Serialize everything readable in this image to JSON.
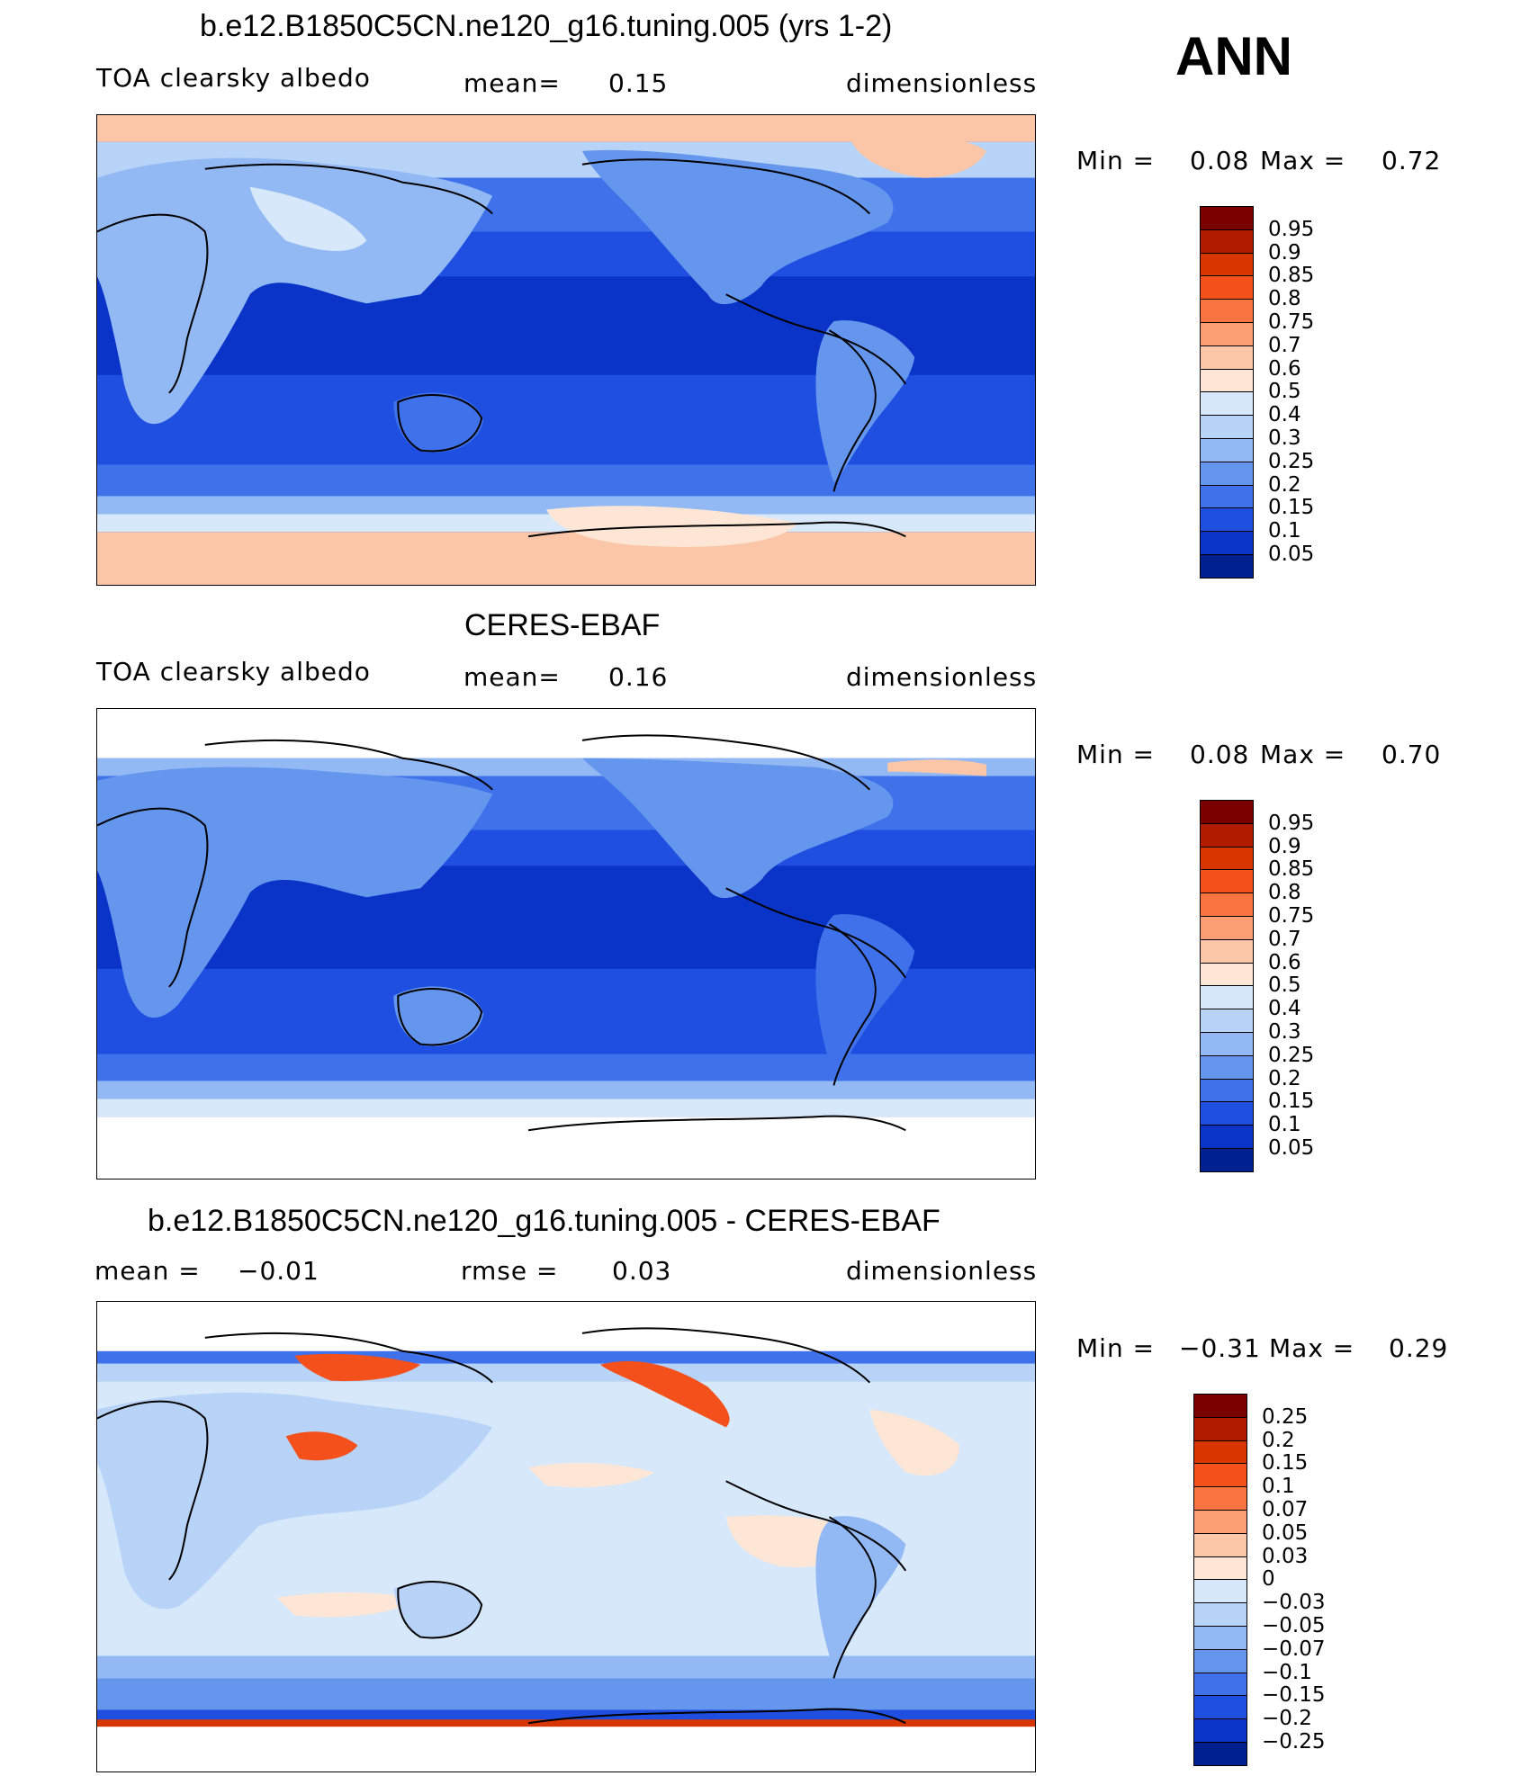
{
  "season_label": "ANN",
  "panels": [
    {
      "title": "b.e12.B1850C5CN.ne120_g16.tuning.005 (yrs 1-2)",
      "left_label": "TOA clearsky albedo",
      "center_label": "mean=",
      "center_value": "0.15",
      "units": "dimensionless",
      "min_label": "Min =",
      "min_value": "0.08",
      "max_label": "Max =",
      "max_value": "0.72",
      "levels": [
        "0.95",
        "0.9",
        "0.85",
        "0.8",
        "0.75",
        "0.7",
        "0.6",
        "0.5",
        "0.4",
        "0.3",
        "0.25",
        "0.2",
        "0.15",
        "0.1",
        "0.05"
      ],
      "colors": [
        "#7a0000",
        "#b01c00",
        "#d83600",
        "#f4501c",
        "#f87440",
        "#fb9e73",
        "#fbc6a8",
        "#fde6d5",
        "#d6e8fa",
        "#b7d3f7",
        "#92b9f4",
        "#6596ee",
        "#3f72ea",
        "#1e4fe0",
        "#0a33c8",
        "#00208f"
      ]
    },
    {
      "title": "CERES-EBAF",
      "left_label": "TOA clearsky albedo",
      "center_label": "mean=",
      "center_value": "0.16",
      "units": "dimensionless",
      "min_label": "Min =",
      "min_value": "0.08",
      "max_label": "Max =",
      "max_value": "0.70",
      "levels": [
        "0.95",
        "0.9",
        "0.85",
        "0.8",
        "0.75",
        "0.7",
        "0.6",
        "0.5",
        "0.4",
        "0.3",
        "0.25",
        "0.2",
        "0.15",
        "0.1",
        "0.05"
      ],
      "colors": [
        "#7a0000",
        "#b01c00",
        "#d83600",
        "#f4501c",
        "#f87440",
        "#fb9e73",
        "#fbc6a8",
        "#fde6d5",
        "#d6e8fa",
        "#b7d3f7",
        "#92b9f4",
        "#6596ee",
        "#3f72ea",
        "#1e4fe0",
        "#0a33c8",
        "#00208f"
      ]
    },
    {
      "title": "b.e12.B1850C5CN.ne120_g16.tuning.005 - CERES-EBAF",
      "left_label": "mean =",
      "left_value": "−0.01",
      "center_label": "rmse =",
      "center_value": "0.03",
      "units": "dimensionless",
      "min_label": "Min =",
      "min_value": "−0.31",
      "max_label": "Max =",
      "max_value": "0.29",
      "levels": [
        "0.25",
        "0.2",
        "0.15",
        "0.1",
        "0.07",
        "0.05",
        "0.03",
        "0",
        "−0.03",
        "−0.05",
        "−0.07",
        "−0.1",
        "−0.15",
        "−0.2",
        "−0.25"
      ],
      "colors": [
        "#7a0000",
        "#b01c00",
        "#d83600",
        "#f4501c",
        "#f87440",
        "#fb9e73",
        "#fbc6a8",
        "#fde6d5",
        "#d6e8fa",
        "#b7d3f7",
        "#92b9f4",
        "#6596ee",
        "#3f72ea",
        "#1e4fe0",
        "#0a33c8",
        "#00208f"
      ]
    }
  ],
  "chart_data": [
    {
      "type": "heatmap",
      "title": "b.e12.B1850C5CN.ne120_g16.tuning.005 (yrs 1-2)",
      "variable": "TOA clearsky albedo",
      "units": "dimensionless",
      "mean": 0.15,
      "min": 0.08,
      "max": 0.72,
      "contour_levels": [
        0.05,
        0.1,
        0.15,
        0.2,
        0.25,
        0.3,
        0.4,
        0.5,
        0.6,
        0.7,
        0.75,
        0.8,
        0.85,
        0.9,
        0.95
      ]
    },
    {
      "type": "heatmap",
      "title": "CERES-EBAF",
      "variable": "TOA clearsky albedo",
      "units": "dimensionless",
      "mean": 0.16,
      "min": 0.08,
      "max": 0.7,
      "contour_levels": [
        0.05,
        0.1,
        0.15,
        0.2,
        0.25,
        0.3,
        0.4,
        0.5,
        0.6,
        0.7,
        0.75,
        0.8,
        0.85,
        0.9,
        0.95
      ]
    },
    {
      "type": "heatmap",
      "title": "b.e12.B1850C5CN.ne120_g16.tuning.005 - CERES-EBAF",
      "units": "dimensionless",
      "mean": -0.01,
      "rmse": 0.03,
      "min": -0.31,
      "max": 0.29,
      "contour_levels": [
        -0.25,
        -0.2,
        -0.15,
        -0.1,
        -0.07,
        -0.05,
        -0.03,
        0,
        0.03,
        0.05,
        0.07,
        0.1,
        0.15,
        0.2,
        0.25
      ]
    }
  ]
}
